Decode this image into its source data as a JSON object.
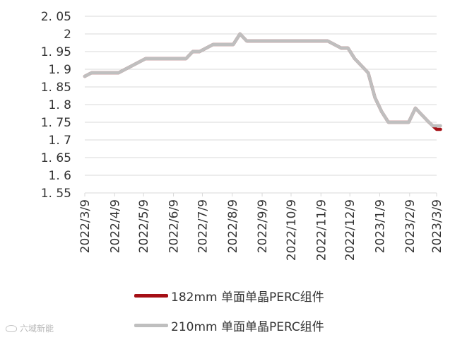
{
  "chart_data": {
    "type": "line",
    "title": "",
    "xlabel": "",
    "ylabel": "",
    "ylim": [
      1.55,
      2.05
    ],
    "y_ticks": [
      "1.55",
      "1.6",
      "1.65",
      "1.7",
      "1.75",
      "1.8",
      "1.85",
      "1.9",
      "1.95",
      "2",
      "2.05"
    ],
    "x_tick_labels": [
      "2022/3/9",
      "2022/4/9",
      "2022/5/9",
      "2022/6/9",
      "2022/7/9",
      "2022/8/9",
      "2022/9/9",
      "2022/10/9",
      "2022/11/9",
      "2022/12/9",
      "2023/1/9",
      "2023/2/9",
      "2023/3/9"
    ],
    "grid": "horizontal",
    "legend_position": "bottom",
    "series": [
      {
        "name": "182mm 单面单晶PERC组件",
        "color": "#a50f15",
        "points": [
          [
            "2022/3/9",
            1.88
          ],
          [
            "2022/3/16",
            1.89
          ],
          [
            "2022/3/23",
            1.89
          ],
          [
            "2022/3/30",
            1.89
          ],
          [
            "2022/4/6",
            1.89
          ],
          [
            "2022/4/13",
            1.89
          ],
          [
            "2022/4/20",
            1.9
          ],
          [
            "2022/4/27",
            1.91
          ],
          [
            "2022/5/4",
            1.92
          ],
          [
            "2022/5/11",
            1.93
          ],
          [
            "2022/5/18",
            1.93
          ],
          [
            "2022/5/25",
            1.93
          ],
          [
            "2022/6/1",
            1.93
          ],
          [
            "2022/6/8",
            1.93
          ],
          [
            "2022/6/15",
            1.93
          ],
          [
            "2022/6/22",
            1.93
          ],
          [
            "2022/6/29",
            1.95
          ],
          [
            "2022/7/6",
            1.95
          ],
          [
            "2022/7/13",
            1.96
          ],
          [
            "2022/7/20",
            1.97
          ],
          [
            "2022/7/27",
            1.97
          ],
          [
            "2022/8/3",
            1.97
          ],
          [
            "2022/8/10",
            1.97
          ],
          [
            "2022/8/17",
            2.0
          ],
          [
            "2022/8/24",
            1.98
          ],
          [
            "2022/8/31",
            1.98
          ],
          [
            "2022/9/7",
            1.98
          ],
          [
            "2022/9/14",
            1.98
          ],
          [
            "2022/9/21",
            1.98
          ],
          [
            "2022/9/28",
            1.98
          ],
          [
            "2022/10/5",
            1.98
          ],
          [
            "2022/10/12",
            1.98
          ],
          [
            "2022/10/19",
            1.98
          ],
          [
            "2022/10/26",
            1.98
          ],
          [
            "2022/11/2",
            1.98
          ],
          [
            "2022/11/9",
            1.98
          ],
          [
            "2022/11/16",
            1.98
          ],
          [
            "2022/11/23",
            1.97
          ],
          [
            "2022/11/30",
            1.96
          ],
          [
            "2022/12/7",
            1.96
          ],
          [
            "2022/12/14",
            1.93
          ],
          [
            "2022/12/21",
            1.91
          ],
          [
            "2022/12/28",
            1.89
          ],
          [
            "2023/1/4",
            1.82
          ],
          [
            "2023/1/11",
            1.78
          ],
          [
            "2023/1/18",
            1.75
          ],
          [
            "2023/1/25",
            1.75
          ],
          [
            "2023/2/1",
            1.75
          ],
          [
            "2023/2/8",
            1.75
          ],
          [
            "2023/2/15",
            1.79
          ],
          [
            "2023/2/22",
            1.77
          ],
          [
            "2023/3/1",
            1.75
          ],
          [
            "2023/3/5",
            1.74
          ],
          [
            "2023/3/9",
            1.73
          ],
          [
            "2023/3/13",
            1.73
          ]
        ]
      },
      {
        "name": "210mm 单面单晶PERC组件",
        "color": "#bfbfbf",
        "points": [
          [
            "2022/3/9",
            1.88
          ],
          [
            "2022/3/16",
            1.89
          ],
          [
            "2022/3/23",
            1.89
          ],
          [
            "2022/3/30",
            1.89
          ],
          [
            "2022/4/6",
            1.89
          ],
          [
            "2022/4/13",
            1.89
          ],
          [
            "2022/4/20",
            1.9
          ],
          [
            "2022/4/27",
            1.91
          ],
          [
            "2022/5/4",
            1.92
          ],
          [
            "2022/5/11",
            1.93
          ],
          [
            "2022/5/18",
            1.93
          ],
          [
            "2022/5/25",
            1.93
          ],
          [
            "2022/6/1",
            1.93
          ],
          [
            "2022/6/8",
            1.93
          ],
          [
            "2022/6/15",
            1.93
          ],
          [
            "2022/6/22",
            1.93
          ],
          [
            "2022/6/29",
            1.95
          ],
          [
            "2022/7/6",
            1.95
          ],
          [
            "2022/7/13",
            1.96
          ],
          [
            "2022/7/20",
            1.97
          ],
          [
            "2022/7/27",
            1.97
          ],
          [
            "2022/8/3",
            1.97
          ],
          [
            "2022/8/10",
            1.97
          ],
          [
            "2022/8/17",
            2.0
          ],
          [
            "2022/8/24",
            1.98
          ],
          [
            "2022/8/31",
            1.98
          ],
          [
            "2022/9/7",
            1.98
          ],
          [
            "2022/9/14",
            1.98
          ],
          [
            "2022/9/21",
            1.98
          ],
          [
            "2022/9/28",
            1.98
          ],
          [
            "2022/10/5",
            1.98
          ],
          [
            "2022/10/12",
            1.98
          ],
          [
            "2022/10/19",
            1.98
          ],
          [
            "2022/10/26",
            1.98
          ],
          [
            "2022/11/2",
            1.98
          ],
          [
            "2022/11/9",
            1.98
          ],
          [
            "2022/11/16",
            1.98
          ],
          [
            "2022/11/23",
            1.97
          ],
          [
            "2022/11/30",
            1.96
          ],
          [
            "2022/12/7",
            1.96
          ],
          [
            "2022/12/14",
            1.93
          ],
          [
            "2022/12/21",
            1.91
          ],
          [
            "2022/12/28",
            1.89
          ],
          [
            "2023/1/4",
            1.82
          ],
          [
            "2023/1/11",
            1.78
          ],
          [
            "2023/1/18",
            1.75
          ],
          [
            "2023/1/25",
            1.75
          ],
          [
            "2023/2/1",
            1.75
          ],
          [
            "2023/2/8",
            1.75
          ],
          [
            "2023/2/15",
            1.79
          ],
          [
            "2023/2/22",
            1.77
          ],
          [
            "2023/3/1",
            1.75
          ],
          [
            "2023/3/5",
            1.74
          ],
          [
            "2023/3/9",
            1.74
          ],
          [
            "2023/3/13",
            1.74
          ]
        ]
      }
    ]
  },
  "watermark": {
    "icon": "wechat-logo-icon",
    "text": "六域新能"
  }
}
